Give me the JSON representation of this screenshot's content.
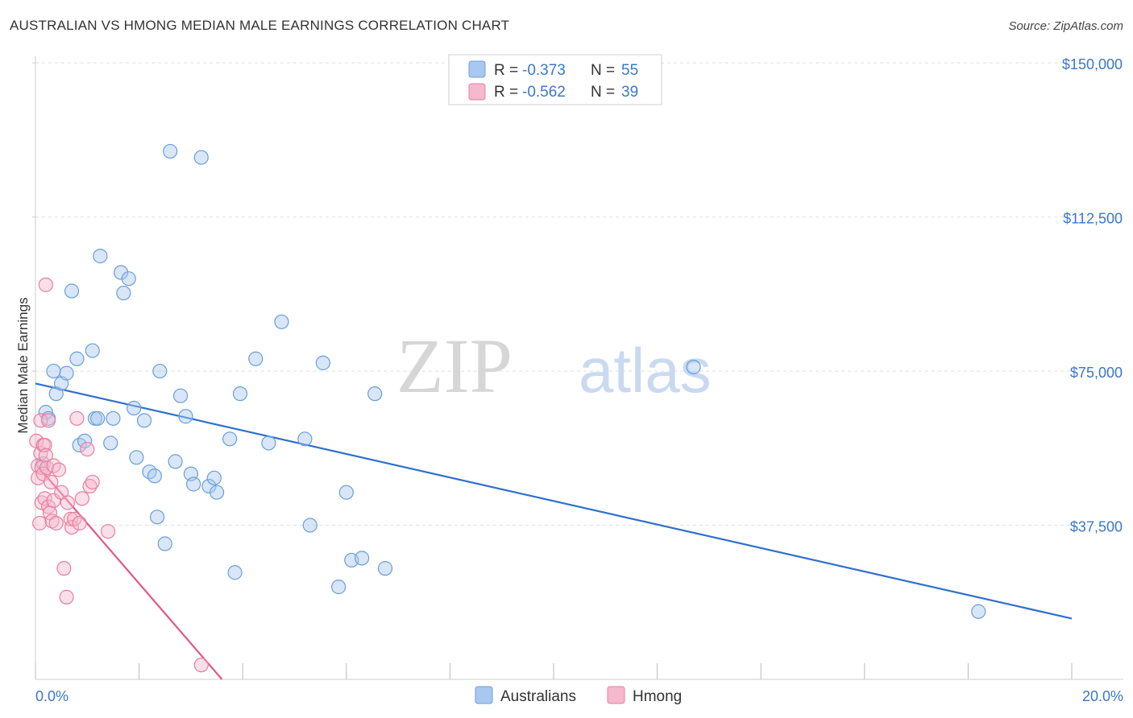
{
  "title": "AUSTRALIAN VS HMONG MEDIAN MALE EARNINGS CORRELATION CHART",
  "source": "Source: ZipAtlas.com",
  "watermark": {
    "zip": "ZIP",
    "atlas": "atlas"
  },
  "colors": {
    "australians_fill": "#a8c8f0",
    "australians_stroke": "#6a9fd8",
    "australians_line": "#2f6fcf",
    "hmong_fill": "#f5b8cc",
    "hmong_stroke": "#e87fa0",
    "hmong_line": "#e0588a",
    "tick_text": "#3b78c9",
    "grid": "#e0e0e0"
  },
  "legend": {
    "rows": [
      {
        "r_label": "R =",
        "r_value": "-0.373",
        "n_label": "N =",
        "n_value": "55"
      },
      {
        "r_label": "R =",
        "r_value": "-0.562",
        "n_label": "N =",
        "n_value": "39"
      }
    ]
  },
  "chart_data": {
    "type": "scatter",
    "title": "AUSTRALIAN VS HMONG MEDIAN MALE EARNINGS CORRELATION CHART",
    "xlabel": "",
    "ylabel": "Median Male Earnings",
    "xlim": [
      0,
      20
    ],
    "ylim": [
      0,
      153750
    ],
    "x_tick_labels": [
      "0.0%",
      "20.0%"
    ],
    "y_ticks": [
      37500,
      75000,
      112500,
      150000
    ],
    "y_tick_labels": [
      "$37,500",
      "$75,000",
      "$112,500",
      "$150,000"
    ],
    "grid": true,
    "legend_position": "top-center",
    "series": [
      {
        "name": "Australians",
        "trend": {
          "x": [
            0,
            20
          ],
          "y": [
            72000,
            14800
          ]
        },
        "points": [
          [
            0.15,
            52500
          ],
          [
            0.2,
            65000
          ],
          [
            0.25,
            63500
          ],
          [
            0.35,
            75000
          ],
          [
            0.4,
            69500
          ],
          [
            0.5,
            72000
          ],
          [
            0.6,
            74500
          ],
          [
            0.7,
            94500
          ],
          [
            0.8,
            78000
          ],
          [
            0.85,
            57000
          ],
          [
            0.95,
            58000
          ],
          [
            1.1,
            80000
          ],
          [
            1.15,
            63500
          ],
          [
            1.2,
            63500
          ],
          [
            1.25,
            103000
          ],
          [
            1.45,
            57500
          ],
          [
            1.5,
            63500
          ],
          [
            1.65,
            99000
          ],
          [
            1.7,
            94000
          ],
          [
            1.8,
            97500
          ],
          [
            1.9,
            66000
          ],
          [
            1.95,
            54000
          ],
          [
            2.1,
            63000
          ],
          [
            2.2,
            50500
          ],
          [
            2.3,
            49500
          ],
          [
            2.35,
            39500
          ],
          [
            2.5,
            33000
          ],
          [
            2.4,
            75000
          ],
          [
            2.6,
            128500
          ],
          [
            2.7,
            53000
          ],
          [
            2.8,
            69000
          ],
          [
            2.9,
            64000
          ],
          [
            3.0,
            50000
          ],
          [
            3.05,
            47500
          ],
          [
            3.2,
            127000
          ],
          [
            3.35,
            47000
          ],
          [
            3.45,
            49000
          ],
          [
            3.5,
            45500
          ],
          [
            3.75,
            58500
          ],
          [
            3.85,
            26000
          ],
          [
            3.95,
            69500
          ],
          [
            4.25,
            78000
          ],
          [
            4.5,
            57500
          ],
          [
            4.75,
            87000
          ],
          [
            5.2,
            58500
          ],
          [
            5.3,
            37500
          ],
          [
            5.55,
            77000
          ],
          [
            5.85,
            22500
          ],
          [
            6.0,
            45500
          ],
          [
            6.1,
            29000
          ],
          [
            6.3,
            29500
          ],
          [
            6.55,
            69500
          ],
          [
            6.75,
            27000
          ],
          [
            12.7,
            76000
          ],
          [
            18.2,
            16500
          ]
        ]
      },
      {
        "name": "Hmong",
        "trend": {
          "x": [
            0,
            3.6
          ],
          "y": [
            52500,
            0
          ]
        },
        "points": [
          [
            0.02,
            58000
          ],
          [
            0.05,
            52000
          ],
          [
            0.05,
            49000
          ],
          [
            0.08,
            38000
          ],
          [
            0.1,
            63000
          ],
          [
            0.1,
            55000
          ],
          [
            0.12,
            51500
          ],
          [
            0.12,
            43000
          ],
          [
            0.15,
            57000
          ],
          [
            0.15,
            50000
          ],
          [
            0.18,
            57000
          ],
          [
            0.18,
            44000
          ],
          [
            0.2,
            96000
          ],
          [
            0.2,
            54500
          ],
          [
            0.22,
            51500
          ],
          [
            0.25,
            63000
          ],
          [
            0.25,
            42000
          ],
          [
            0.28,
            40500
          ],
          [
            0.3,
            48000
          ],
          [
            0.32,
            38500
          ],
          [
            0.35,
            52000
          ],
          [
            0.35,
            43500
          ],
          [
            0.4,
            38000
          ],
          [
            0.45,
            51000
          ],
          [
            0.5,
            45500
          ],
          [
            0.55,
            27000
          ],
          [
            0.6,
            20000
          ],
          [
            0.62,
            43000
          ],
          [
            0.68,
            39000
          ],
          [
            0.7,
            37000
          ],
          [
            0.75,
            39000
          ],
          [
            0.8,
            63500
          ],
          [
            0.85,
            38000
          ],
          [
            0.9,
            44000
          ],
          [
            1.0,
            56000
          ],
          [
            1.05,
            47000
          ],
          [
            1.1,
            48000
          ],
          [
            1.4,
            36000
          ],
          [
            3.2,
            3500
          ]
        ]
      }
    ]
  },
  "bottom_legend": {
    "items": [
      {
        "label": "Australians"
      },
      {
        "label": "Hmong"
      }
    ]
  }
}
